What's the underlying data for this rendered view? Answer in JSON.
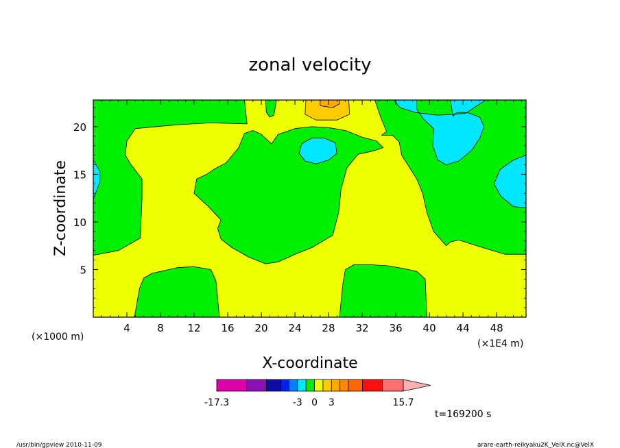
{
  "chart_data": {
    "type": "heatmap",
    "title": "zonal velocity",
    "xlabel": "X-coordinate",
    "ylabel": "Z-coordinate",
    "x_unit_left": "(×1000 m)",
    "x_unit_right": "(×1E4 m)",
    "xlim": [
      0,
      51.5
    ],
    "ylim": [
      0,
      22.8
    ],
    "x_ticks": [
      4,
      8,
      12,
      16,
      20,
      24,
      28,
      32,
      36,
      40,
      44,
      48
    ],
    "y_ticks": [
      5,
      10,
      15,
      20
    ],
    "grid": false,
    "colorbar": {
      "min_label": "-17.3",
      "max_label": "15.7",
      "mid_labels": [
        {
          "text": "-3",
          "value": -3
        },
        {
          "text": "0",
          "value": 0
        },
        {
          "text": "3",
          "value": 3
        }
      ],
      "bins": [
        {
          "lo": -17.3,
          "hi": -12,
          "color": "#dd00aa"
        },
        {
          "lo": -12,
          "hi": -8.5,
          "color": "#8b10b8"
        },
        {
          "lo": -8.5,
          "hi": -6,
          "color": "#0c0ca8"
        },
        {
          "lo": -6,
          "hi": -4.5,
          "color": "#0022ee"
        },
        {
          "lo": -4.5,
          "hi": -3,
          "color": "#0080ff"
        },
        {
          "lo": -3,
          "hi": -1.5,
          "color": "#00e8ff"
        },
        {
          "lo": -1.5,
          "hi": 0,
          "color": "#00ee00"
        },
        {
          "lo": 0,
          "hi": 1.5,
          "color": "#eeff00"
        },
        {
          "lo": 1.5,
          "hi": 3,
          "color": "#ffcc00"
        },
        {
          "lo": 3,
          "hi": 4.5,
          "color": "#ffaa00"
        },
        {
          "lo": 4.5,
          "hi": 6,
          "color": "#ff8800"
        },
        {
          "lo": 6,
          "hi": 8.5,
          "color": "#ff6600"
        },
        {
          "lo": 8.5,
          "hi": 12,
          "color": "#ff1010"
        },
        {
          "lo": 12,
          "hi": 15.7,
          "color": "#ff7070"
        }
      ],
      "overflow_color": "#ffb0b0"
    },
    "regions": [
      {
        "name": "background-positive",
        "level": "0 to 1.5",
        "color": "#eeff00",
        "points": [
          [
            0,
            0
          ],
          [
            51.5,
            0
          ],
          [
            51.5,
            22.8
          ],
          [
            0,
            22.8
          ]
        ]
      },
      {
        "name": "left-top-negative",
        "level": "-1.5 to 0",
        "color": "#00ee00",
        "points": [
          [
            0,
            22.8
          ],
          [
            18,
            22.8
          ],
          [
            18.3,
            20.3
          ],
          [
            14,
            20.4
          ],
          [
            10,
            20.2
          ],
          [
            5,
            19.8
          ],
          [
            4,
            18.5
          ],
          [
            3.8,
            17
          ],
          [
            4.5,
            16
          ],
          [
            5.8,
            14.5
          ],
          [
            5.8,
            12.5
          ],
          [
            5.7,
            10.3
          ],
          [
            5.6,
            8.3
          ],
          [
            3,
            7
          ],
          [
            0,
            6.5
          ]
        ]
      },
      {
        "name": "top-left-notch",
        "level": "-1.5 to 0",
        "color": "#00ee00",
        "points": [
          [
            20.5,
            22.8
          ],
          [
            21.8,
            22.8
          ],
          [
            21.5,
            21.2
          ],
          [
            21,
            21
          ],
          [
            20.6,
            21.5
          ]
        ]
      },
      {
        "name": "central-negative",
        "level": "-1.5 to 0",
        "color": "#00ee00",
        "points": [
          [
            18,
            19.3
          ],
          [
            19,
            19.6
          ],
          [
            20,
            19.2
          ],
          [
            21.2,
            18.2
          ],
          [
            22,
            19.2
          ],
          [
            24,
            19.8
          ],
          [
            26,
            20
          ],
          [
            28,
            19.9
          ],
          [
            30,
            19.6
          ],
          [
            32,
            18.9
          ],
          [
            33.7,
            18.5
          ],
          [
            34.5,
            17.8
          ],
          [
            33.5,
            17.5
          ],
          [
            31.5,
            17.1
          ],
          [
            30.2,
            15.7
          ],
          [
            29.5,
            13.5
          ],
          [
            29.2,
            11
          ],
          [
            28.5,
            8.6
          ],
          [
            26,
            7.3
          ],
          [
            24,
            6.6
          ],
          [
            22,
            5.8
          ],
          [
            20.5,
            5.6
          ],
          [
            18.5,
            6.3
          ],
          [
            16.5,
            7.3
          ],
          [
            15.2,
            8.2
          ],
          [
            14.8,
            9.3
          ],
          [
            15.2,
            10.2
          ],
          [
            13.6,
            11.7
          ],
          [
            12,
            13
          ],
          [
            12.3,
            14.5
          ],
          [
            13.5,
            15
          ],
          [
            14.5,
            15.6
          ],
          [
            15.8,
            16.2
          ],
          [
            17.3,
            17.8
          ]
        ]
      },
      {
        "name": "top-right-negative",
        "level": "-1.5 to 0",
        "color": "#00ee00",
        "points": [
          [
            33.5,
            22.8
          ],
          [
            51.5,
            22.8
          ],
          [
            51.5,
            6.6
          ],
          [
            49,
            6.6
          ],
          [
            46,
            7.4
          ],
          [
            43.5,
            8.1
          ],
          [
            42.5,
            7.9
          ],
          [
            42,
            7.5
          ],
          [
            40.5,
            9
          ],
          [
            39.7,
            11
          ],
          [
            39.2,
            13
          ],
          [
            38.5,
            14.5
          ],
          [
            37.5,
            15.9
          ],
          [
            36.7,
            17
          ],
          [
            36.4,
            18.4
          ],
          [
            35.6,
            19.1
          ],
          [
            34.3,
            19.1
          ],
          [
            34.9,
            19.5
          ],
          [
            34.2,
            21
          ]
        ]
      },
      {
        "name": "bottom-left-negative",
        "level": "-1.5 to 0",
        "color": "#00ee00",
        "points": [
          [
            4.9,
            0
          ],
          [
            5.5,
            3
          ],
          [
            6,
            4.1
          ],
          [
            7,
            4.6
          ],
          [
            8,
            4.8
          ],
          [
            9,
            5
          ],
          [
            10,
            5.2
          ],
          [
            12,
            5.3
          ],
          [
            14,
            5
          ],
          [
            14.6,
            3.8
          ],
          [
            14.8,
            2
          ],
          [
            15,
            0
          ]
        ]
      },
      {
        "name": "bottom-right-negative",
        "level": "-1.5 to 0",
        "color": "#00ee00",
        "points": [
          [
            29.3,
            0
          ],
          [
            29.7,
            3.5
          ],
          [
            30,
            5
          ],
          [
            31,
            5.5
          ],
          [
            33,
            5.5
          ],
          [
            35,
            5.4
          ],
          [
            37,
            5.1
          ],
          [
            38.5,
            4.8
          ],
          [
            39.5,
            4
          ],
          [
            39.6,
            2
          ],
          [
            39.7,
            0
          ]
        ]
      },
      {
        "name": "left-edge-cyan",
        "level": "-3 to -1.5",
        "color": "#00e8ff",
        "points": [
          [
            0,
            16.5
          ],
          [
            0.8,
            15.3
          ],
          [
            0.8,
            14.2
          ],
          [
            0,
            12.4
          ]
        ]
      },
      {
        "name": "center-cyan-blob",
        "level": "-3 to -1.5",
        "color": "#00e8ff",
        "points": [
          [
            24.5,
            17.2
          ],
          [
            25.2,
            16.4
          ],
          [
            26.5,
            16.1
          ],
          [
            28,
            16.5
          ],
          [
            29,
            17.2
          ],
          [
            28.8,
            18.3
          ],
          [
            27.5,
            18.8
          ],
          [
            26,
            18.8
          ],
          [
            24.8,
            18.2
          ]
        ]
      },
      {
        "name": "top-right-cyan",
        "level": "-3 to -1.5",
        "color": "#00e8ff",
        "points": [
          [
            35.8,
            22.8
          ],
          [
            38.5,
            22.8
          ],
          [
            38.5,
            21.8
          ],
          [
            39.3,
            20.8
          ],
          [
            40.5,
            19.8
          ],
          [
            40.4,
            18
          ],
          [
            41,
            16.5
          ],
          [
            42,
            16
          ],
          [
            43.5,
            16.4
          ],
          [
            45,
            17.5
          ],
          [
            46,
            18.8
          ],
          [
            46.5,
            20
          ],
          [
            46,
            21
          ],
          [
            44.5,
            21.5
          ],
          [
            43.3,
            21.5
          ],
          [
            42.8,
            21.1
          ],
          [
            42.5,
            22.8
          ],
          [
            46.7,
            22.8
          ],
          [
            44.3,
            21.4
          ],
          [
            41,
            21.2
          ],
          [
            38.3,
            21.5
          ],
          [
            36.5,
            22
          ]
        ]
      },
      {
        "name": "right-edge-cyan",
        "level": "-3 to -1.5",
        "color": "#00e8ff",
        "points": [
          [
            51.5,
            17
          ],
          [
            50,
            16.5
          ],
          [
            48.4,
            15.5
          ],
          [
            47.7,
            14
          ],
          [
            48.5,
            12.7
          ],
          [
            50,
            11.6
          ],
          [
            51.5,
            11.5
          ]
        ]
      },
      {
        "name": "top-orange-light",
        "level": "1.5 to 3",
        "color": "#ffcc00",
        "points": [
          [
            25.3,
            22.8
          ],
          [
            25.2,
            21.3
          ],
          [
            26.5,
            20.7
          ],
          [
            29,
            20.7
          ],
          [
            30.5,
            21.3
          ],
          [
            30.4,
            22.8
          ]
        ]
      },
      {
        "name": "top-orange",
        "level": "3 to 4.5",
        "color": "#ffaa00",
        "points": [
          [
            27,
            22.8
          ],
          [
            27,
            22.2
          ],
          [
            28.5,
            22
          ],
          [
            29.3,
            22.4
          ],
          [
            29.3,
            22.8
          ]
        ]
      }
    ]
  },
  "footer": {
    "time_label": "t=169200 s",
    "program": "/usr/bin/gpview   2010-11-09",
    "source": "arare-earth-reikyaku2K_VelX.nc@VelX"
  }
}
